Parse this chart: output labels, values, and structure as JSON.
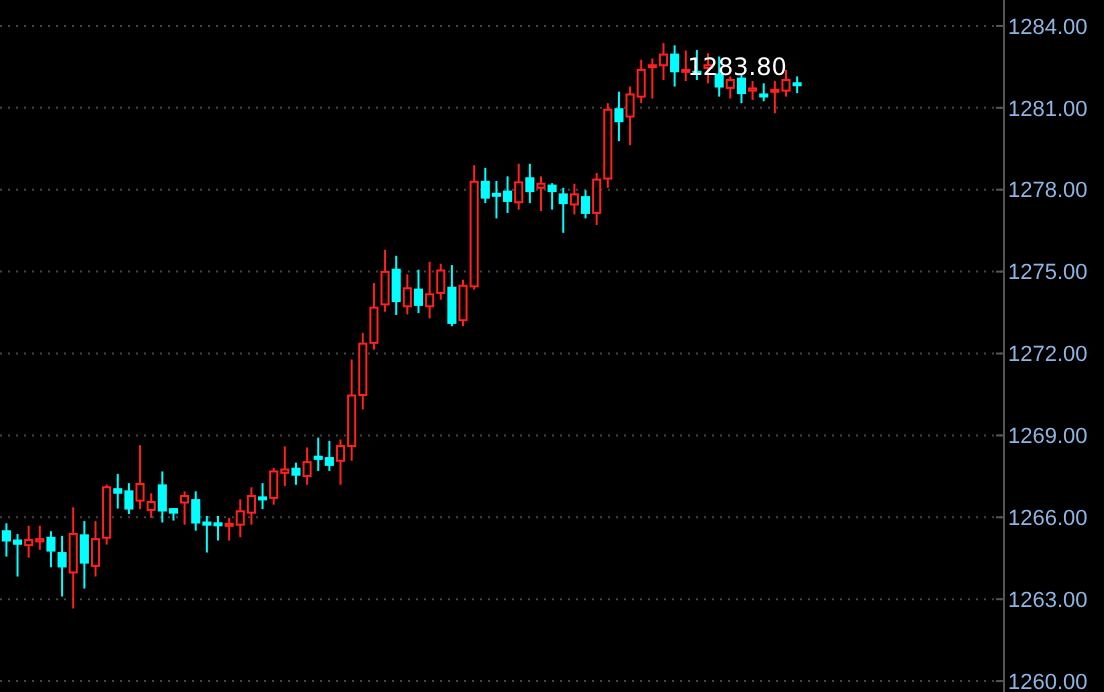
{
  "chart_data": {
    "type": "candlestick",
    "categories": [
      null,
      null,
      null,
      null,
      null,
      null,
      null,
      null,
      null,
      null,
      null,
      null,
      null,
      null,
      null,
      null,
      null,
      null,
      null,
      null,
      null,
      null,
      null,
      null,
      null,
      null,
      null,
      null,
      null,
      null,
      null,
      null,
      null,
      null,
      null,
      null,
      null,
      null,
      null,
      null,
      null,
      null,
      null,
      null,
      null,
      null,
      null,
      null,
      null,
      null,
      null,
      null,
      null,
      null,
      null,
      null,
      null,
      null,
      null,
      null,
      null,
      null,
      null,
      null,
      null,
      null,
      null,
      null,
      null,
      null,
      null,
      null,
      null,
      null,
      null,
      null,
      null,
      null,
      null,
      null,
      null,
      null,
      null,
      null,
      null,
      null,
      null,
      null,
      null,
      null
    ],
    "ohlc": [
      [
        1265.49,
        1265.78,
        1264.56,
        1265.15
      ],
      [
        1265.15,
        1265.39,
        1263.83,
        1265.03
      ],
      [
        1264.98,
        1265.69,
        1264.52,
        1265.17
      ],
      [
        1265.12,
        1265.69,
        1264.81,
        1265.2
      ],
      [
        1265.25,
        1265.49,
        1264.17,
        1264.78
      ],
      [
        1264.69,
        1265.32,
        1263.1,
        1264.2
      ],
      [
        1263.98,
        1266.37,
        1262.66,
        1265.39
      ],
      [
        1265.34,
        1265.86,
        1263.39,
        1264.34
      ],
      [
        1264.22,
        1265.86,
        1263.83,
        1265.2
      ],
      [
        1265.25,
        1267.2,
        1265.0,
        1267.1
      ],
      [
        1267.03,
        1267.59,
        1266.32,
        1266.9
      ],
      [
        1266.95,
        1267.25,
        1266.12,
        1266.32
      ],
      [
        1266.61,
        1268.64,
        1266.3,
        1267.22
      ],
      [
        1266.27,
        1266.88,
        1265.98,
        1266.56
      ],
      [
        1267.17,
        1267.68,
        1265.81,
        1266.25
      ],
      [
        1266.3,
        1266.34,
        1265.88,
        1266.17
      ],
      [
        1266.54,
        1266.95,
        1265.73,
        1266.78
      ],
      [
        1266.63,
        1266.95,
        1265.51,
        1265.81
      ],
      [
        1265.81,
        1266.05,
        1264.71,
        1265.73
      ],
      [
        1265.78,
        1266.05,
        1265.15,
        1265.71
      ],
      [
        1265.69,
        1265.98,
        1265.15,
        1265.76
      ],
      [
        1265.73,
        1266.66,
        1265.27,
        1266.22
      ],
      [
        1266.17,
        1267.1,
        1265.73,
        1266.78
      ],
      [
        1266.73,
        1267.25,
        1266.3,
        1266.66
      ],
      [
        1266.71,
        1267.81,
        1266.46,
        1267.68
      ],
      [
        1267.63,
        1268.6,
        1267.14,
        1267.75
      ],
      [
        1267.78,
        1268.0,
        1267.19,
        1267.56
      ],
      [
        1267.51,
        1268.56,
        1267.19,
        1268.02
      ],
      [
        1268.22,
        1268.92,
        1267.7,
        1268.14
      ],
      [
        1268.17,
        1268.8,
        1267.7,
        1267.92
      ],
      [
        1268.07,
        1268.85,
        1267.19,
        1268.61
      ],
      [
        1268.61,
        1271.78,
        1268.07,
        1270.46
      ],
      [
        1270.48,
        1272.75,
        1269.95,
        1272.36
      ],
      [
        1272.39,
        1274.58,
        1272.14,
        1273.68
      ],
      [
        1273.8,
        1275.8,
        1273.53,
        1274.99
      ],
      [
        1275.07,
        1275.58,
        1273.41,
        1273.92
      ],
      [
        1273.73,
        1274.9,
        1273.43,
        1274.39
      ],
      [
        1274.34,
        1275.07,
        1273.48,
        1273.78
      ],
      [
        1273.73,
        1275.36,
        1273.29,
        1274.17
      ],
      [
        1274.22,
        1275.29,
        1273.97,
        1275.04
      ],
      [
        1274.41,
        1275.24,
        1273.0,
        1273.12
      ],
      [
        1273.22,
        1274.7,
        1273.0,
        1274.48
      ],
      [
        1274.46,
        1278.9,
        1274.34,
        1278.29
      ],
      [
        1278.29,
        1278.8,
        1277.51,
        1277.71
      ],
      [
        1277.85,
        1278.32,
        1276.95,
        1277.78
      ],
      [
        1277.93,
        1278.49,
        1277.15,
        1277.59
      ],
      [
        1277.54,
        1278.95,
        1277.27,
        1278.27
      ],
      [
        1278.42,
        1278.95,
        1277.51,
        1277.95
      ],
      [
        1278.07,
        1278.49,
        1277.22,
        1278.22
      ],
      [
        1278.15,
        1278.24,
        1277.27,
        1277.95
      ],
      [
        1277.83,
        1278.07,
        1276.42,
        1277.51
      ],
      [
        1277.46,
        1278.22,
        1277.1,
        1277.83
      ],
      [
        1277.73,
        1277.98,
        1276.95,
        1277.15
      ],
      [
        1277.15,
        1278.61,
        1276.71,
        1278.37
      ],
      [
        1278.41,
        1281.17,
        1278.07,
        1280.93
      ],
      [
        1280.95,
        1281.59,
        1279.78,
        1280.51
      ],
      [
        1280.68,
        1281.78,
        1279.63,
        1281.49
      ],
      [
        1281.41,
        1282.76,
        1281.17,
        1282.39
      ],
      [
        1282.49,
        1282.81,
        1281.34,
        1282.56
      ],
      [
        1282.56,
        1283.37,
        1282.02,
        1282.95
      ],
      [
        1282.95,
        1283.29,
        1281.78,
        1282.34
      ],
      [
        1282.32,
        1283.1,
        1281.98,
        1282.39
      ],
      [
        1282.32,
        1283.12,
        1282.02,
        1282.27
      ],
      [
        1282.46,
        1283.0,
        1281.9,
        1282.56
      ],
      [
        1282.22,
        1282.88,
        1281.41,
        1281.78
      ],
      [
        1281.73,
        1282.15,
        1281.34,
        1282.02
      ],
      [
        1282.07,
        1282.22,
        1281.17,
        1281.54
      ],
      [
        1281.63,
        1281.98,
        1281.29,
        1281.71
      ],
      [
        1281.49,
        1281.9,
        1281.24,
        1281.44
      ],
      [
        1281.59,
        1281.98,
        1280.8,
        1281.66
      ],
      [
        1281.63,
        1282.39,
        1281.41,
        1282.02
      ],
      [
        1281.9,
        1282.15,
        1281.54,
        1281.83
      ],
      null,
      null,
      null,
      null,
      null,
      null,
      null,
      null,
      null,
      null,
      null,
      null,
      null,
      null,
      null,
      null,
      null,
      null
    ],
    "ylim": [
      1259.6,
      1284.95
    ],
    "yticks": [
      {
        "value": 1260,
        "label": "1260.00"
      },
      {
        "value": 1263,
        "label": "1263.00"
      },
      {
        "value": 1266,
        "label": "1266.00"
      },
      {
        "value": 1269,
        "label": "1269.00"
      },
      {
        "value": 1272,
        "label": "1272.00"
      },
      {
        "value": 1275,
        "label": "1275.00"
      },
      {
        "value": 1278,
        "label": "1278.00"
      },
      {
        "value": 1281,
        "label": "1281.00"
      },
      {
        "value": 1284,
        "label": "1284.00"
      }
    ],
    "grid": "y",
    "annotations": [
      "1283.80"
    ]
  }
}
